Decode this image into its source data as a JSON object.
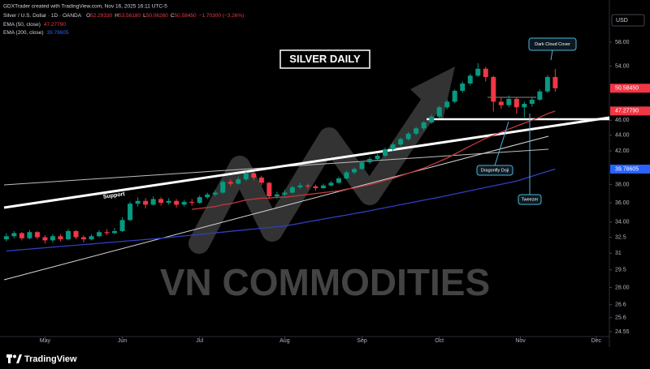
{
  "header": {
    "credit": "GDXTrader created with TradingView.com, Nov 16, 2025 16:11 UTC-5",
    "symbol": "Silver / U.S. Dollar · 1D · OANDA",
    "ohlc": [
      {
        "key": "O",
        "value": "52.29330"
      },
      {
        "key": "H",
        "value": "53.56180"
      },
      {
        "key": "L",
        "value": "50.06260"
      },
      {
        "key": "C",
        "value": "50.58450"
      }
    ],
    "change": "−1.70300 (−3.26%)"
  },
  "footer": {
    "brand": "TradingView"
  },
  "chart_data": {
    "type": "candlestick",
    "title": "SILVER DAILY",
    "watermark": "VN COMMODITIES",
    "currency": "USD",
    "annotations": [
      "Dark Cloud Cover",
      "Dragonfly Doji",
      "Tweezer",
      "Support"
    ],
    "up_color": "#089981",
    "down_color": "#f23645",
    "log_scale": true,
    "ylim": [
      24.2,
      63.4
    ],
    "yticks": [
      {
        "value": 58,
        "label": "58.00"
      },
      {
        "value": 54,
        "label": "54.00"
      },
      {
        "value": 46,
        "label": "46.00"
      },
      {
        "value": 44,
        "label": "44.00"
      },
      {
        "value": 42,
        "label": "42.00"
      },
      {
        "value": 38,
        "label": "38.00"
      },
      {
        "value": 36,
        "label": "36.00"
      },
      {
        "value": 34,
        "label": "34.00"
      },
      32.5,
      31,
      29.5,
      {
        "value": 28,
        "label": "28.00"
      },
      26.6,
      25.6,
      24.55
    ],
    "xlim": [
      -0.3,
      78
    ],
    "xticks": [
      {
        "value": 5,
        "label": "May"
      },
      {
        "value": 15,
        "label": "Jun"
      },
      {
        "value": 25,
        "label": "Jul"
      },
      {
        "value": 36,
        "label": "Aug"
      },
      {
        "value": 46,
        "label": "Sep"
      },
      {
        "value": 56,
        "label": "Oct"
      },
      {
        "value": 66.5,
        "label": "Nov"
      },
      {
        "value": 76.3,
        "label": "Dec"
      }
    ],
    "price_labels": [
      {
        "value": 50.5845,
        "label": "50.58450",
        "color": "#f23645"
      },
      {
        "value": 47.2779,
        "label": "47.27790",
        "color": "#f23645"
      },
      {
        "value": 39.78605,
        "label": "39.78605",
        "color": "#2962ff"
      }
    ],
    "candles": [
      [
        32.3,
        32.9,
        32.1,
        32.6
      ],
      [
        32.6,
        33.1,
        32.4,
        32.9
      ],
      [
        32.9,
        33.0,
        32.2,
        32.4
      ],
      [
        32.4,
        33.2,
        32.3,
        33.0
      ],
      [
        33.0,
        33.1,
        32.3,
        32.5
      ],
      [
        32.5,
        32.7,
        31.9,
        32.2
      ],
      [
        32.2,
        32.8,
        32.0,
        32.6
      ],
      [
        32.6,
        32.8,
        32.1,
        32.3
      ],
      [
        32.3,
        33.3,
        32.2,
        33.1
      ],
      [
        33.1,
        33.2,
        32.3,
        32.5
      ],
      [
        32.5,
        32.7,
        32.0,
        32.3
      ],
      [
        32.3,
        32.8,
        32.2,
        32.6
      ],
      [
        32.6,
        33.2,
        32.5,
        33.0
      ],
      [
        33.0,
        33.3,
        32.7,
        32.9
      ],
      [
        32.9,
        33.4,
        32.8,
        33.1
      ],
      [
        33.1,
        34.5,
        33.0,
        34.2
      ],
      [
        34.2,
        36.1,
        34.1,
        35.9
      ],
      [
        35.9,
        36.6,
        35.6,
        36.2
      ],
      [
        36.2,
        36.5,
        35.4,
        35.8
      ],
      [
        35.8,
        36.7,
        35.7,
        36.4
      ],
      [
        36.4,
        36.6,
        35.7,
        36.0
      ],
      [
        36.0,
        36.5,
        35.8,
        36.2
      ],
      [
        36.2,
        36.4,
        35.5,
        35.8
      ],
      [
        35.8,
        36.3,
        35.6,
        36.1
      ],
      [
        36.1,
        36.4,
        35.7,
        36.0
      ],
      [
        36.0,
        36.8,
        35.9,
        36.6
      ],
      [
        36.6,
        37.1,
        36.4,
        36.9
      ],
      [
        36.9,
        37.4,
        36.7,
        37.1
      ],
      [
        37.1,
        38.5,
        37.0,
        38.3
      ],
      [
        38.3,
        38.6,
        37.8,
        38.1
      ],
      [
        38.1,
        38.9,
        38.0,
        38.6
      ],
      [
        38.6,
        39.5,
        38.4,
        39.3
      ],
      [
        39.3,
        39.4,
        38.5,
        38.8
      ],
      [
        38.8,
        39.0,
        37.9,
        38.2
      ],
      [
        38.2,
        38.3,
        36.5,
        36.7
      ],
      [
        36.7,
        37.2,
        36.4,
        36.9
      ],
      [
        36.9,
        37.4,
        36.7,
        37.1
      ],
      [
        37.1,
        37.9,
        37.0,
        37.7
      ],
      [
        37.7,
        38.2,
        37.5,
        37.9
      ],
      [
        37.9,
        38.1,
        37.5,
        37.8
      ],
      [
        37.8,
        38.0,
        37.3,
        37.6
      ],
      [
        37.6,
        38.1,
        37.5,
        37.9
      ],
      [
        37.9,
        38.4,
        37.8,
        38.2
      ],
      [
        38.2,
        38.9,
        38.1,
        38.7
      ],
      [
        38.7,
        39.6,
        38.6,
        39.4
      ],
      [
        39.4,
        40.0,
        39.2,
        39.8
      ],
      [
        39.8,
        40.8,
        39.7,
        40.6
      ],
      [
        40.6,
        41.2,
        40.4,
        41.0
      ],
      [
        41.0,
        41.6,
        40.7,
        41.4
      ],
      [
        41.4,
        42.4,
        41.2,
        42.2
      ],
      [
        42.2,
        43.0,
        42.0,
        42.8
      ],
      [
        42.8,
        43.7,
        42.6,
        43.5
      ],
      [
        43.5,
        44.4,
        43.3,
        44.2
      ],
      [
        44.2,
        45.1,
        44.0,
        44.9
      ],
      [
        44.9,
        45.9,
        44.6,
        45.7
      ],
      [
        45.7,
        46.8,
        45.5,
        46.5
      ],
      [
        46.5,
        48.0,
        46.3,
        47.8
      ],
      [
        47.8,
        48.9,
        47.5,
        48.6
      ],
      [
        48.6,
        50.4,
        48.4,
        50.2
      ],
      [
        50.2,
        51.6,
        49.9,
        51.3
      ],
      [
        51.3,
        52.8,
        51.0,
        52.5
      ],
      [
        52.5,
        54.5,
        52.3,
        53.6
      ],
      [
        53.6,
        53.9,
        51.6,
        52.3
      ],
      [
        52.3,
        52.5,
        47.2,
        48.6
      ],
      [
        48.6,
        49.3,
        47.6,
        48.1
      ],
      [
        48.1,
        49.5,
        47.8,
        49.0
      ],
      [
        49.0,
        49.2,
        46.9,
        47.8
      ],
      [
        47.8,
        48.6,
        46.4,
        48.3
      ],
      [
        48.3,
        49.2,
        47.9,
        48.9
      ],
      [
        48.9,
        50.4,
        48.7,
        50.1
      ],
      [
        50.1,
        52.6,
        49.9,
        52.3
      ],
      [
        52.2933,
        53.5618,
        50.0626,
        50.5845
      ]
    ],
    "series": [
      {
        "name": "EMA (50, close)",
        "color": "#c2393b",
        "values": [
          null,
          null,
          null,
          null,
          null,
          null,
          null,
          null,
          null,
          null,
          null,
          null,
          null,
          null,
          null,
          null,
          null,
          null,
          null,
          null,
          null,
          null,
          null,
          null,
          35.3,
          35.4,
          35.5,
          35.6,
          35.8,
          35.9,
          36.1,
          36.3,
          36.4,
          36.5,
          36.5,
          36.6,
          36.6,
          36.7,
          36.8,
          36.9,
          37.0,
          37.1,
          37.2,
          37.3,
          37.5,
          37.6,
          37.8,
          38.0,
          38.2,
          38.5,
          38.7,
          39.0,
          39.3,
          39.6,
          39.9,
          40.3,
          40.7,
          41.1,
          41.6,
          42.1,
          42.6,
          43.1,
          43.6,
          44.0,
          44.4,
          44.8,
          45.2,
          45.6,
          46.0,
          46.4,
          46.9,
          47.2779
        ]
      },
      {
        "name": "EMA (200, close)",
        "color": "#2f3fbf",
        "values": [
          31.2,
          31.26,
          31.32,
          31.38,
          31.44,
          31.5,
          31.56,
          31.62,
          31.68,
          31.74,
          31.8,
          31.86,
          31.92,
          31.98,
          32.04,
          32.1,
          32.16,
          32.22,
          32.28,
          32.34,
          32.4,
          32.48,
          32.55,
          32.63,
          32.7,
          32.78,
          32.85,
          32.93,
          33.0,
          33.08,
          33.15,
          33.23,
          33.3,
          33.38,
          33.45,
          33.53,
          33.6,
          33.74,
          33.88,
          34.02,
          34.16,
          34.3,
          34.44,
          34.58,
          34.72,
          34.86,
          35.0,
          35.16,
          35.32,
          35.48,
          35.64,
          35.8,
          35.96,
          36.12,
          36.28,
          36.44,
          36.6,
          36.78,
          36.96,
          37.14,
          37.32,
          37.5,
          37.68,
          37.86,
          38.04,
          38.22,
          38.4,
          38.68,
          38.96,
          39.24,
          39.52,
          39.786
        ]
      }
    ]
  }
}
